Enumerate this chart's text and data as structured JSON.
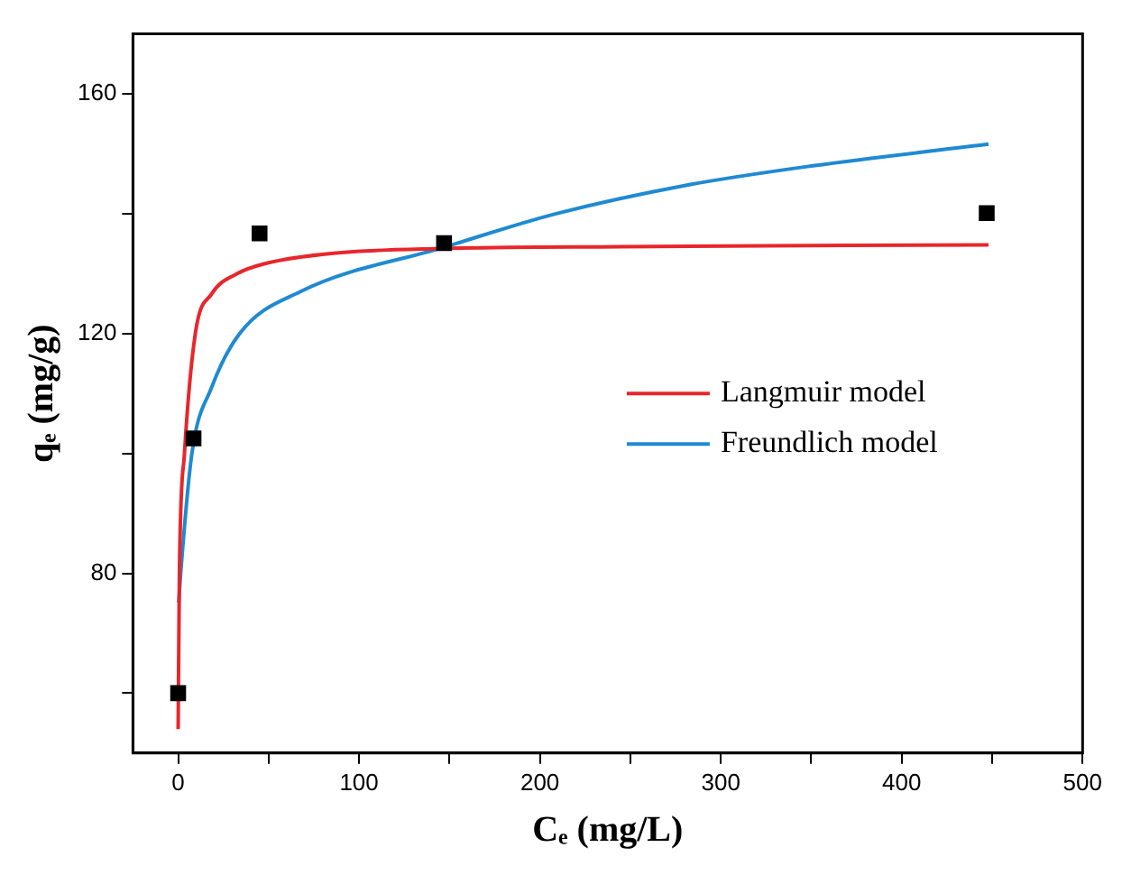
{
  "chart_data": {
    "type": "scatter",
    "xlabel": "Cₑ (mg/L)",
    "ylabel": "qₑ (mg/g)",
    "xlim": [
      -25,
      500
    ],
    "xticks": [
      0,
      {
        "value": 50,
        "label": null
      },
      100,
      {
        "value": 150,
        "label": null
      },
      200,
      {
        "value": 250,
        "label": null
      },
      300,
      {
        "value": 350,
        "label": null
      },
      400,
      {
        "value": 450,
        "label": null
      },
      500
    ],
    "ylim": [
      50,
      170
    ],
    "yticks": [
      {
        "value": 60,
        "label": null
      },
      80,
      {
        "value": 100,
        "label": null
      },
      120,
      {
        "value": 140,
        "label": null
      },
      160
    ],
    "grid": false,
    "legend": "right",
    "series": [
      {
        "marker": "square",
        "color": "#000000",
        "x": [
          0,
          8.5,
          45,
          147,
          447
        ],
        "values": [
          60,
          102.5,
          136.7,
          135.1,
          140.1
        ]
      },
      {
        "type": "line",
        "name": "Langmuir model",
        "color": "#e8262b",
        "x": [
          0,
          0.7,
          3.5,
          9.5,
          18.5,
          32.7,
          47,
          86,
          147,
          244,
          448
        ],
        "values": [
          54,
          80,
          100,
          120,
          126.6,
          130,
          131.6,
          133.4,
          134.2,
          134.5,
          134.8
        ]
      },
      {
        "type": "line",
        "name": "Freundlich model",
        "color": "#1f8ad2",
        "x": [
          0.3,
          1.4,
          7.6,
          18.5,
          34,
          67.6,
          147,
          209,
          280,
          351,
          448
        ],
        "values": [
          75.1,
          80,
          100,
          111,
          120,
          127,
          134.4,
          140,
          144.7,
          148,
          151.6
        ]
      }
    ]
  }
}
